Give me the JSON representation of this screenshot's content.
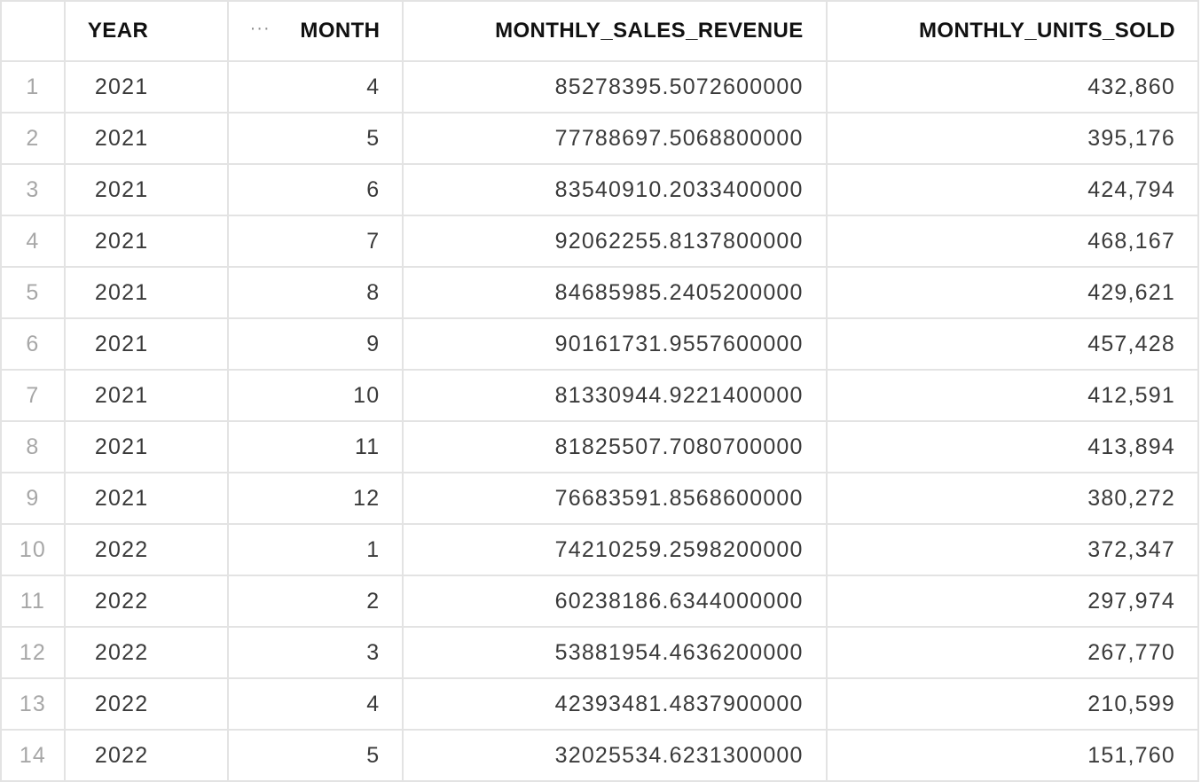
{
  "table": {
    "columns": {
      "year": "YEAR",
      "month": "MONTH",
      "revenue": "MONTHLY_SALES_REVENUE",
      "units": "MONTHLY_UNITS_SOLD"
    },
    "column_menu_glyph": "···",
    "rows": [
      {
        "idx": "1",
        "year": "2021",
        "month": "4",
        "revenue": "85278395.5072600000",
        "units": "432,860"
      },
      {
        "idx": "2",
        "year": "2021",
        "month": "5",
        "revenue": "77788697.5068800000",
        "units": "395,176"
      },
      {
        "idx": "3",
        "year": "2021",
        "month": "6",
        "revenue": "83540910.2033400000",
        "units": "424,794"
      },
      {
        "idx": "4",
        "year": "2021",
        "month": "7",
        "revenue": "92062255.8137800000",
        "units": "468,167"
      },
      {
        "idx": "5",
        "year": "2021",
        "month": "8",
        "revenue": "84685985.2405200000",
        "units": "429,621"
      },
      {
        "idx": "6",
        "year": "2021",
        "month": "9",
        "revenue": "90161731.9557600000",
        "units": "457,428"
      },
      {
        "idx": "7",
        "year": "2021",
        "month": "10",
        "revenue": "81330944.9221400000",
        "units": "412,591"
      },
      {
        "idx": "8",
        "year": "2021",
        "month": "11",
        "revenue": "81825507.7080700000",
        "units": "413,894"
      },
      {
        "idx": "9",
        "year": "2021",
        "month": "12",
        "revenue": "76683591.8568600000",
        "units": "380,272"
      },
      {
        "idx": "10",
        "year": "2022",
        "month": "1",
        "revenue": "74210259.2598200000",
        "units": "372,347"
      },
      {
        "idx": "11",
        "year": "2022",
        "month": "2",
        "revenue": "60238186.6344000000",
        "units": "297,974"
      },
      {
        "idx": "12",
        "year": "2022",
        "month": "3",
        "revenue": "53881954.4636200000",
        "units": "267,770"
      },
      {
        "idx": "13",
        "year": "2022",
        "month": "4",
        "revenue": "42393481.4837900000",
        "units": "210,599"
      },
      {
        "idx": "14",
        "year": "2022",
        "month": "5",
        "revenue": "32025534.6231300000",
        "units": "151,760"
      }
    ]
  }
}
